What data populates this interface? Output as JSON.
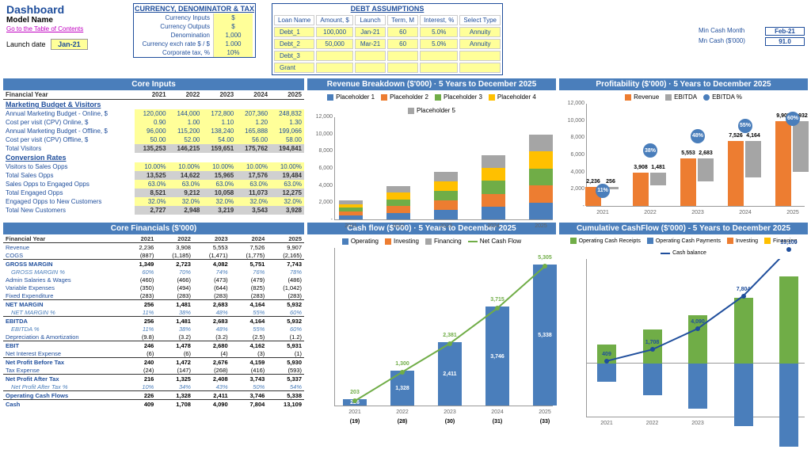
{
  "header": {
    "title": "Dashboard",
    "model": "Model Name",
    "toc": "Go to the Table of Contents",
    "launch_label": "Launch date",
    "launch_val": "Jan-21"
  },
  "currency": {
    "title": "CURRENCY, DENOMINATOR & TAX",
    "rows": [
      {
        "l": "Currency Inputs",
        "v": "$"
      },
      {
        "l": "Currency Outputs",
        "v": "$"
      },
      {
        "l": "Denomination",
        "v": "1,000"
      },
      {
        "l": "Currency exch rate $ / $",
        "v": "1.000"
      },
      {
        "l": "Corporate tax, %",
        "v": "10%"
      }
    ]
  },
  "debt": {
    "title": "DEBT ASSUMPTIONS",
    "cols": [
      "Loan Name",
      "Amount, $",
      "Launch",
      "Term, M",
      "Interest, %",
      "Select Type"
    ],
    "rows": [
      [
        "Debt_1",
        "100,000",
        "Jan-21",
        "60",
        "5.0%",
        "Annuity"
      ],
      [
        "Debt_2",
        "50,000",
        "Mar-21",
        "60",
        "5.0%",
        "Annuity"
      ],
      [
        "Debt_3",
        "",
        "",
        "",
        "",
        ""
      ],
      [
        "Grant",
        "",
        "",
        "",
        "",
        ""
      ]
    ]
  },
  "mincash": {
    "r1": {
      "l": "Min Cash Month",
      "v": "Feb-21"
    },
    "r2": {
      "l": "Mn Cash ($'000)",
      "v": "91.0"
    }
  },
  "sections": {
    "inputs": "Core Inputs",
    "rev": "Revenue Breakdown ($'000) · 5 Years to December 2025",
    "prof": "Profitability ($'000) · 5 Years to December 2025",
    "fin": "Core Financials ($'000)",
    "cf": "Cash flow ($'000) · 5 Years to December 2025",
    "cum": "Cumulative CashFlow ($'000) - 5 Years to December 2025"
  },
  "years": [
    "2021",
    "2022",
    "2023",
    "2024",
    "2025"
  ],
  "fy_label": "Financial Year",
  "marketing": {
    "title": "Marketing Budget & Visitors",
    "rows": [
      {
        "l": "Annual Marketing Budget - Online, $",
        "v": [
          "120,000",
          "144,000",
          "172,800",
          "207,360",
          "248,832"
        ],
        "c": "yel"
      },
      {
        "l": "Cost per visit (CPV) Online, $",
        "v": [
          "0.90",
          "1.00",
          "1.10",
          "1.20",
          "1.30"
        ],
        "c": "yel"
      },
      {
        "l": "Annual Marketing Budget - Offline, $",
        "v": [
          "96,000",
          "115,200",
          "138,240",
          "165,888",
          "199,066"
        ],
        "c": "yel"
      },
      {
        "l": "Cost per visit (CPV) Offline, $",
        "v": [
          "50.00",
          "52.00",
          "54.00",
          "56.00",
          "58.00"
        ],
        "c": "yel"
      },
      {
        "l": "Total Visitors",
        "v": [
          "135,253",
          "146,215",
          "159,651",
          "175,762",
          "194,841"
        ],
        "c": "grey"
      }
    ]
  },
  "conversion": {
    "title": "Conversion Rates",
    "rows": [
      {
        "l": "Visitors to Sales Opps",
        "v": [
          "10.00%",
          "10.00%",
          "10.00%",
          "10.00%",
          "10.00%"
        ],
        "c": "yel"
      },
      {
        "l": "Total Sales Opps",
        "v": [
          "13,525",
          "14,622",
          "15,965",
          "17,576",
          "19,484"
        ],
        "c": "grey"
      },
      {
        "l": "Sales Opps to Engaged Opps",
        "v": [
          "63.0%",
          "63.0%",
          "63.0%",
          "63.0%",
          "63.0%"
        ],
        "c": "yel"
      },
      {
        "l": "Total Engaged Opps",
        "v": [
          "8,521",
          "9,212",
          "10,058",
          "11,073",
          "12,275"
        ],
        "c": "grey"
      },
      {
        "l": "Engaged Opps to New Customers",
        "v": [
          "32.0%",
          "32.0%",
          "32.0%",
          "32.0%",
          "32.0%"
        ],
        "c": "yel"
      },
      {
        "l": "Total New Customers",
        "v": [
          "2,727",
          "2,948",
          "3,219",
          "3,543",
          "3,928"
        ],
        "c": "grey"
      }
    ]
  },
  "rev_chart": {
    "legend": [
      "Placeholder 1",
      "Placeholder 2",
      "Placeholder 3",
      "Placeholder 4",
      "Placeholder 5"
    ],
    "colors": [
      "#4a7ebb",
      "#ed7d31",
      "#70ad47",
      "#ffc000",
      "#a5a5a5"
    ],
    "yticks": [
      "-",
      "2,000",
      "4,000",
      "6,000",
      "8,000",
      "10,000",
      "12,000"
    ],
    "ymax": 12000,
    "stacks": [
      [
        450,
        450,
        450,
        450,
        450
      ],
      [
        780,
        780,
        780,
        780,
        780
      ],
      [
        1110,
        1110,
        1110,
        1110,
        1110
      ],
      [
        1500,
        1500,
        1500,
        1500,
        1500
      ],
      [
        1980,
        1980,
        1980,
        1980,
        1980
      ]
    ]
  },
  "prof_chart": {
    "legend": [
      {
        "t": "Revenue",
        "c": "#ed7d31",
        "s": "sq"
      },
      {
        "t": "EBITDA",
        "c": "#a5a5a5",
        "s": "sq"
      },
      {
        "t": "EBITDA %",
        "c": "#4a7ebb",
        "s": "dot"
      }
    ],
    "yticks": [
      "-",
      "2,000",
      "4,000",
      "6,000",
      "8,000",
      "10,000",
      "12,000"
    ],
    "ymax": 12000,
    "rev": [
      2236,
      3908,
      5553,
      7526,
      9907
    ],
    "ebitda": [
      256,
      1481,
      2683,
      4164,
      5932
    ],
    "pct": [
      "11%",
      "38%",
      "48%",
      "55%",
      "60%"
    ],
    "pct_y": [
      11,
      38,
      48,
      55,
      60
    ]
  },
  "financials": {
    "rows": [
      {
        "l": "Revenue",
        "v": [
          "2,236",
          "3,908",
          "5,553",
          "7,526",
          "9,907"
        ]
      },
      {
        "l": "COGS",
        "v": [
          "(887)",
          "(1,185)",
          "(1,471)",
          "(1,775)",
          "(2,165)"
        ]
      },
      {
        "l": "GROSS MARGIN",
        "v": [
          "1,349",
          "2,723",
          "4,082",
          "5,751",
          "7,743"
        ],
        "c": "bold"
      },
      {
        "l": "GROSS MARGIN %",
        "v": [
          "60%",
          "70%",
          "74%",
          "76%",
          "78%"
        ],
        "c": "ital"
      },
      {
        "l": "Admin Salaries & Wages",
        "v": [
          "(460)",
          "(466)",
          "(473)",
          "(479)",
          "(486)"
        ]
      },
      {
        "l": "Variable Expenses",
        "v": [
          "(350)",
          "(494)",
          "(644)",
          "(825)",
          "(1,042)"
        ]
      },
      {
        "l": "Fixed Expenditure",
        "v": [
          "(283)",
          "(283)",
          "(283)",
          "(283)",
          "(283)"
        ]
      },
      {
        "l": "NET MARGIN",
        "v": [
          "256",
          "1,481",
          "2,683",
          "4,164",
          "5,932"
        ],
        "c": "bold"
      },
      {
        "l": "NET MARGIN %",
        "v": [
          "11%",
          "38%",
          "48%",
          "55%",
          "60%"
        ],
        "c": "ital"
      },
      {
        "l": "EBITDA",
        "v": [
          "256",
          "1,481",
          "2,683",
          "4,164",
          "5,932"
        ],
        "c": "bold"
      },
      {
        "l": "EBITDA %",
        "v": [
          "11%",
          "38%",
          "48%",
          "55%",
          "60%"
        ],
        "c": "ital"
      },
      {
        "l": "Depreciation & Amortization",
        "v": [
          "(9.8)",
          "(3.2)",
          "(3.2)",
          "(2.5)",
          "(1.2)"
        ]
      },
      {
        "l": "EBIT",
        "v": [
          "246",
          "1,478",
          "2,680",
          "4,162",
          "5,931"
        ],
        "c": "bold"
      },
      {
        "l": "Net Interest Expense",
        "v": [
          "(6)",
          "(6)",
          "(4)",
          "(3)",
          "(1)"
        ]
      },
      {
        "l": "Net Profit Before Tax",
        "v": [
          "240",
          "1,472",
          "2,676",
          "4,159",
          "5,930"
        ],
        "c": "bold"
      },
      {
        "l": "Tax Expense",
        "v": [
          "(24)",
          "(147)",
          "(268)",
          "(416)",
          "(593)"
        ]
      },
      {
        "l": "Net Profit After Tax",
        "v": [
          "216",
          "1,325",
          "2,408",
          "3,743",
          "5,337"
        ],
        "c": "bold"
      },
      {
        "l": "Net Profit After Tax %",
        "v": [
          "10%",
          "34%",
          "43%",
          "50%",
          "54%"
        ],
        "c": "ital"
      },
      {
        "l": "Operating Cash Flows",
        "v": [
          "226",
          "1,328",
          "2,411",
          "3,746",
          "5,338"
        ],
        "c": "bold"
      },
      {
        "l": "Cash",
        "v": [
          "409",
          "1,708",
          "4,090",
          "7,804",
          "13,109"
        ],
        "c": "bold"
      }
    ]
  },
  "cf_chart": {
    "legend": [
      {
        "t": "Operating",
        "c": "#4a7ebb",
        "s": "sq"
      },
      {
        "t": "Investing",
        "c": "#ed7d31",
        "s": "sq"
      },
      {
        "t": "Financing",
        "c": "#a5a5a5",
        "s": "sq"
      },
      {
        "t": "Net Cash Flow",
        "c": "#70ad47",
        "s": "line"
      }
    ],
    "bars": [
      226,
      1328,
      2411,
      3746,
      5338
    ],
    "ymax": 6000,
    "net": [
      203,
      1300,
      2381,
      3715,
      5305
    ],
    "below": [
      "(19)",
      "(28)",
      "(30)",
      "(31)",
      "(33)"
    ],
    "in_bar": [
      "226",
      "1,328",
      "2,411",
      "3,746",
      "5,338"
    ]
  },
  "cum_chart": {
    "legend": [
      {
        "t": "Operating Cash Receipts",
        "c": "#70ad47",
        "s": "sq"
      },
      {
        "t": "Operating Cash Payments",
        "c": "#4a7ebb",
        "s": "sq"
      },
      {
        "t": "Investing",
        "c": "#ed7d31",
        "s": "sq"
      },
      {
        "t": "Financing",
        "c": "#ffc000",
        "s": "sq"
      },
      {
        "t": "Cash balance",
        "c": "#1f4e9c",
        "s": "line"
      }
    ],
    "yticks": [
      "-6,000",
      "-4,000",
      "-2,000",
      "-",
      "2,000",
      "4,000",
      "6,000",
      "8,000",
      "10,000",
      "12,000"
    ],
    "ymin": -6000,
    "ymax": 12000,
    "cash": [
      409,
      1708,
      4090,
      7804,
      13109
    ],
    "green": [
      2236,
      3908,
      5553,
      7526,
      9907
    ],
    "blue_neg": [
      2010,
      3580,
      5142,
      7056,
      9402
    ]
  }
}
